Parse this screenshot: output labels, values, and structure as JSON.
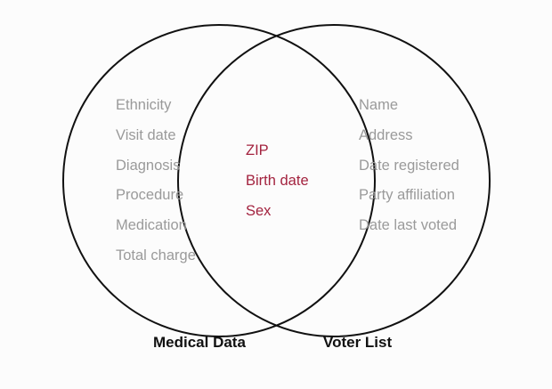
{
  "colors": {
    "circle_stroke": "#111111",
    "muted_text": "#9a9a9a",
    "shared_text": "#a3233f",
    "label_text": "#111111"
  },
  "left_set": {
    "label": "Medical Data",
    "items": [
      "Ethnicity",
      "Visit date",
      "Diagnosis",
      "Procedure",
      "Medication",
      "Total charge"
    ]
  },
  "intersection": {
    "items": [
      "ZIP",
      "Birth date",
      "Sex"
    ]
  },
  "right_set": {
    "label": "Voter List",
    "items": [
      "Name",
      "Address",
      "Date registered",
      "Party affiliation",
      "Date last voted"
    ]
  }
}
